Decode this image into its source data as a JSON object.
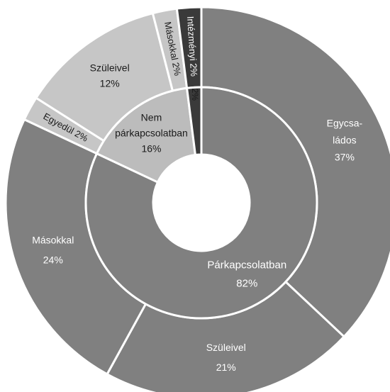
{
  "chart_data": {
    "type": "pie",
    "title": "",
    "colors": {
      "mid_gray": "#808080",
      "light_gray": "#bcbcbc",
      "lighter_gray": "#c6c6c6",
      "dark": "#3a3a3a",
      "separator": "#ffffff"
    },
    "inner_ring": [
      {
        "name": "Párkapcsolatban",
        "value": 82,
        "label": "82%",
        "color": "mid_gray"
      },
      {
        "name": "Nem párkapcsolatban",
        "value": 16,
        "label": "16%",
        "color": "light_gray"
      },
      {
        "name": "Intézményi",
        "value": 2,
        "label": "2%",
        "color": "dark"
      }
    ],
    "outer_ring": [
      {
        "name": "Egycsa-ládos",
        "value": 37,
        "label": "37%",
        "color": "mid_gray"
      },
      {
        "name": "Szüleivel",
        "value": 21,
        "label": "21%",
        "color": "mid_gray"
      },
      {
        "name": "Másokkal",
        "value": 24,
        "label": "24%",
        "color": "mid_gray"
      },
      {
        "name": "Egyedül",
        "value": 2,
        "label": "2%",
        "color": "lighter_gray"
      },
      {
        "name": "Szüleivel",
        "value": 12,
        "label": "12%",
        "color": "lighter_gray"
      },
      {
        "name": "Másokkal",
        "value": 2,
        "label": "2%",
        "color": "lighter_gray"
      },
      {
        "name": "Intézményi",
        "value": 2,
        "label": "2%",
        "color": "dark"
      }
    ]
  }
}
